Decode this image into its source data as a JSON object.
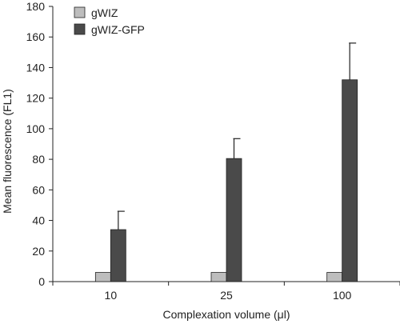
{
  "chart_data": {
    "type": "bar",
    "xlabel": "Complexation volume (μl)",
    "ylabel": "Mean fluorescence (FL1)",
    "categories": [
      "10",
      "25",
      "100"
    ],
    "ylim": [
      0,
      180
    ],
    "yticks": [
      0,
      20,
      40,
      60,
      80,
      100,
      120,
      140,
      160,
      180
    ],
    "grid": false,
    "legend_position": "top-left",
    "series": [
      {
        "name": "gWIZ",
        "color": "#bdbdbd",
        "values": [
          6,
          6,
          6
        ],
        "errors": [
          0,
          0,
          0
        ]
      },
      {
        "name": "gWIZ-GFP",
        "color": "#4a4a4a",
        "values": [
          34,
          80.5,
          132
        ],
        "errors": [
          12,
          13,
          24
        ]
      }
    ]
  }
}
